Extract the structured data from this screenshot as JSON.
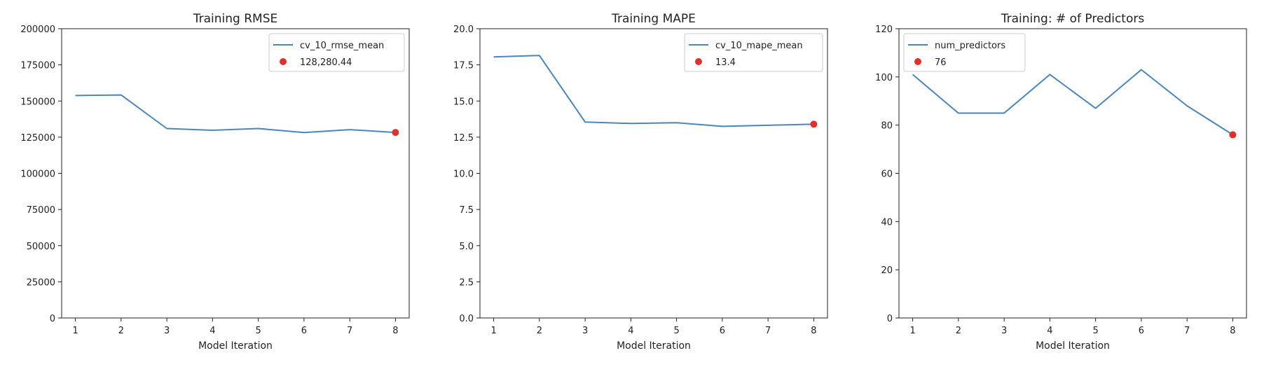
{
  "chart_data": [
    {
      "type": "line",
      "title": "Training RMSE",
      "xlabel": "Model Iteration",
      "ylabel": "",
      "x": [
        1,
        2,
        3,
        4,
        5,
        6,
        7,
        8
      ],
      "xticks": [
        "1",
        "2",
        "3",
        "4",
        "5",
        "6",
        "7",
        "8"
      ],
      "xlim": [
        0.7,
        8.3
      ],
      "ylim": [
        0,
        200000
      ],
      "yticks": [
        0,
        25000,
        50000,
        75000,
        100000,
        125000,
        150000,
        175000,
        200000
      ],
      "ytick_labels": [
        "0",
        "25000",
        "50000",
        "75000",
        "100000",
        "125000",
        "150000",
        "175000",
        "200000"
      ],
      "series": [
        {
          "name": "cv_10_rmse_mean",
          "values": [
            153800,
            154200,
            131000,
            129800,
            131000,
            128200,
            130200,
            128280.44
          ],
          "color": "#4c85be"
        }
      ],
      "highlight": {
        "x": 8,
        "y": 128280.44,
        "label": "128,280.44",
        "color": "#e0302a"
      },
      "legend": "top-right",
      "grid": false
    },
    {
      "type": "line",
      "title": "Training MAPE",
      "xlabel": "Model Iteration",
      "ylabel": "",
      "x": [
        1,
        2,
        3,
        4,
        5,
        6,
        7,
        8
      ],
      "xticks": [
        "1",
        "2",
        "3",
        "4",
        "5",
        "6",
        "7",
        "8"
      ],
      "xlim": [
        0.7,
        8.3
      ],
      "ylim": [
        0,
        20
      ],
      "yticks": [
        0,
        2.5,
        5,
        7.5,
        10,
        12.5,
        15,
        17.5,
        20
      ],
      "ytick_labels": [
        "0.0",
        "2.5",
        "5.0",
        "7.5",
        "10.0",
        "12.5",
        "15.0",
        "17.5",
        "20.0"
      ],
      "series": [
        {
          "name": "cv_10_mape_mean",
          "values": [
            18.05,
            18.15,
            13.55,
            13.45,
            13.5,
            13.25,
            13.32,
            13.4
          ],
          "color": "#4c85be"
        }
      ],
      "highlight": {
        "x": 8,
        "y": 13.4,
        "label": "13.4",
        "color": "#e0302a"
      },
      "legend": "top-right",
      "grid": false
    },
    {
      "type": "line",
      "title": "Training: # of Predictors",
      "xlabel": "Model Iteration",
      "ylabel": "",
      "x": [
        1,
        2,
        3,
        4,
        5,
        6,
        7,
        8
      ],
      "xticks": [
        "1",
        "2",
        "3",
        "4",
        "5",
        "6",
        "7",
        "8"
      ],
      "xlim": [
        0.7,
        8.3
      ],
      "ylim": [
        0,
        120
      ],
      "yticks": [
        0,
        20,
        40,
        60,
        80,
        100,
        120
      ],
      "ytick_labels": [
        "0",
        "20",
        "40",
        "60",
        "80",
        "100",
        "120"
      ],
      "series": [
        {
          "name": "num_predictors",
          "values": [
            101,
            85,
            85,
            101,
            87,
            103,
            88,
            76
          ],
          "color": "#4c85be"
        }
      ],
      "highlight": {
        "x": 8,
        "y": 76,
        "label": "76",
        "color": "#e0302a"
      },
      "legend": "top-left",
      "grid": false
    }
  ]
}
